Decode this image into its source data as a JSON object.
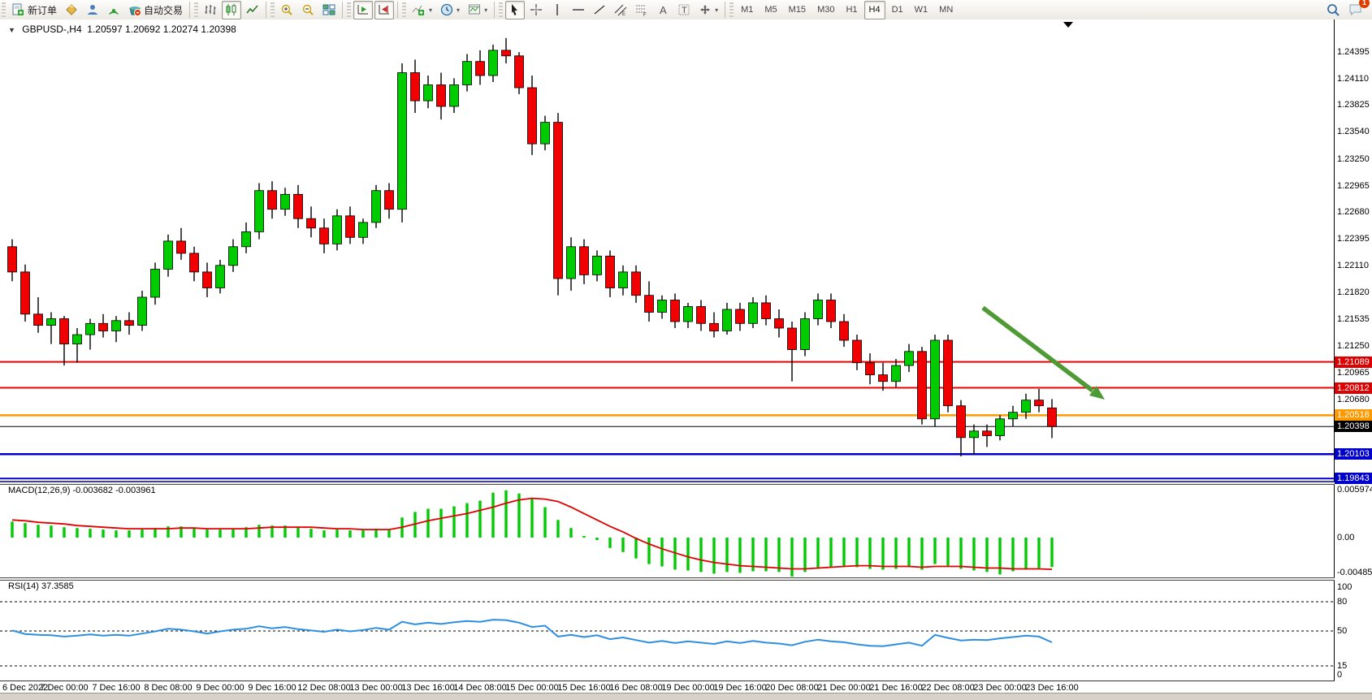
{
  "toolbar": {
    "new_order_label": "新订单",
    "autotrading_label": "自动交易",
    "notifications_count": "1",
    "groups": [
      {
        "name": "trade-group",
        "items": [
          {
            "name": "new-order-button",
            "icon": "doc-plus",
            "label": "新订单"
          },
          {
            "name": "crystal-button",
            "icon": "diamond"
          },
          {
            "name": "community-button",
            "icon": "person"
          },
          {
            "name": "signals-button",
            "icon": "signal"
          },
          {
            "name": "autotrading-button",
            "icon": "autotrade",
            "label": "自动交易"
          }
        ]
      },
      {
        "name": "chart-type-group",
        "items": [
          {
            "name": "bar-chart-button",
            "icon": "bars"
          },
          {
            "name": "candlestick-chart-button",
            "icon": "candles",
            "active": true
          },
          {
            "name": "line-chart-button",
            "icon": "linechart"
          }
        ]
      },
      {
        "name": "zoom-group",
        "items": [
          {
            "name": "zoom-in-button",
            "icon": "zoomin"
          },
          {
            "name": "zoom-out-button",
            "icon": "zoomout"
          },
          {
            "name": "tile-windows-button",
            "icon": "tile"
          }
        ]
      },
      {
        "name": "scroll-group",
        "items": [
          {
            "name": "auto-scroll-button",
            "icon": "autoscroll",
            "active": true
          },
          {
            "name": "chart-shift-button",
            "icon": "shift",
            "active": true
          }
        ]
      },
      {
        "name": "insert-group",
        "items": [
          {
            "name": "indicators-button",
            "icon": "indplus",
            "dropdown": true
          },
          {
            "name": "periods-button",
            "icon": "clock",
            "dropdown": true
          },
          {
            "name": "templates-button",
            "icon": "template",
            "dropdown": true
          }
        ]
      },
      {
        "name": "drawing-group",
        "items": [
          {
            "name": "cursor-button",
            "icon": "cursor",
            "active": true
          },
          {
            "name": "crosshair-button",
            "icon": "crosshair"
          },
          {
            "name": "vertical-line-button",
            "icon": "vline"
          },
          {
            "name": "horizontal-line-button",
            "icon": "hline"
          },
          {
            "name": "trendline-button",
            "icon": "trend"
          },
          {
            "name": "equidistant-channel-button",
            "icon": "channel"
          },
          {
            "name": "fibonacci-button",
            "icon": "fibo"
          },
          {
            "name": "text-button",
            "icon": "textA"
          },
          {
            "name": "text-label-button",
            "icon": "textT"
          },
          {
            "name": "arrows-button",
            "icon": "arrows",
            "dropdown": true
          }
        ]
      }
    ],
    "timeframes": [
      "M1",
      "M5",
      "M15",
      "M30",
      "H1",
      "H4",
      "D1",
      "W1",
      "MN"
    ],
    "active_timeframe": "H4"
  },
  "chart": {
    "title_symbol": "GBPUSD-,H4",
    "title_ohlc": "1.20597 1.20692 1.20274 1.20398"
  },
  "price_axis": {
    "ticks": [
      "1.24395",
      "1.24110",
      "1.23825",
      "1.23540",
      "1.23250",
      "1.22965",
      "1.22680",
      "1.22395",
      "1.22110",
      "1.21820",
      "1.21535",
      "1.21250",
      "1.20965",
      "1.20680"
    ],
    "badges": [
      {
        "value": "1.21089",
        "color": "#dd0000"
      },
      {
        "value": "1.20812",
        "color": "#dd0000"
      },
      {
        "value": "1.20518",
        "color": "#ff9900"
      },
      {
        "value": "1.20398",
        "color": "#000000"
      },
      {
        "value": "1.20103",
        "color": "#0000cc"
      },
      {
        "value": "1.19843",
        "color": "#0000cc"
      }
    ]
  },
  "overlay": {
    "hlines": [
      {
        "price": 1.21089,
        "color": "#ee0000",
        "width": 2
      },
      {
        "price": 1.20812,
        "color": "#ee0000",
        "width": 2
      },
      {
        "price": 1.20518,
        "color": "#ff9900",
        "width": 2.5
      },
      {
        "price": 1.20398,
        "color": "#000000",
        "width": 1
      },
      {
        "price": 1.20103,
        "color": "#0000cc",
        "width": 2.5
      },
      {
        "price": 1.19843,
        "color": "#0000cc",
        "width": 2
      }
    ],
    "arrow_color": "#4e9b35"
  },
  "chart_data": {
    "type": "candlestick",
    "symbol": "GBPUSD-",
    "timeframe": "H4",
    "current_ohlc": {
      "open": 1.20597,
      "high": 1.20692,
      "low": 1.20274,
      "close": 1.20398
    },
    "time_labels": [
      "6 Dec 2022",
      "7 Dec 00:00",
      "7 Dec 16:00",
      "8 Dec 08:00",
      "9 Dec 00:00",
      "9 Dec 16:00",
      "12 Dec 08:00",
      "13 Dec 00:00",
      "13 Dec 16:00",
      "14 Dec 08:00",
      "15 Dec 00:00",
      "15 Dec 16:00",
      "16 Dec 08:00",
      "19 Dec 00:00",
      "19 Dec 16:00",
      "20 Dec 08:00",
      "21 Dec 00:00",
      "21 Dec 16:00",
      "22 Dec 08:00",
      "23 Dec 00:00",
      "23 Dec 16:00"
    ],
    "candles": [
      [
        1.2232,
        1.224,
        1.2195,
        1.2205
      ],
      [
        1.2205,
        1.2213,
        1.2152,
        1.216
      ],
      [
        1.216,
        1.2178,
        1.214,
        1.2148
      ],
      [
        1.2148,
        1.2162,
        1.2128,
        1.2155
      ],
      [
        1.2155,
        1.2158,
        1.2105,
        1.2128
      ],
      [
        1.2128,
        1.2145,
        1.2108,
        1.2138
      ],
      [
        1.2138,
        1.2155,
        1.2122,
        1.215
      ],
      [
        1.215,
        1.216,
        1.2135,
        1.2142
      ],
      [
        1.2142,
        1.2158,
        1.213,
        1.2153
      ],
      [
        1.2153,
        1.2162,
        1.2138,
        1.2148
      ],
      [
        1.2148,
        1.2185,
        1.2142,
        1.2178
      ],
      [
        1.2178,
        1.2215,
        1.217,
        1.2208
      ],
      [
        1.2208,
        1.2245,
        1.22,
        1.2238
      ],
      [
        1.2238,
        1.2252,
        1.2218,
        1.2225
      ],
      [
        1.2225,
        1.2232,
        1.2195,
        1.2205
      ],
      [
        1.2205,
        1.2215,
        1.2178,
        1.2188
      ],
      [
        1.2188,
        1.2218,
        1.2182,
        1.2212
      ],
      [
        1.2212,
        1.224,
        1.2205,
        1.2232
      ],
      [
        1.2232,
        1.2258,
        1.2225,
        1.2248
      ],
      [
        1.2248,
        1.23,
        1.224,
        1.2292
      ],
      [
        1.2292,
        1.2302,
        1.2262,
        1.2272
      ],
      [
        1.2272,
        1.2295,
        1.2265,
        1.2288
      ],
      [
        1.2288,
        1.2298,
        1.2252,
        1.2262
      ],
      [
        1.2262,
        1.2275,
        1.2242,
        1.2252
      ],
      [
        1.2252,
        1.2262,
        1.2225,
        1.2235
      ],
      [
        1.2235,
        1.2272,
        1.2228,
        1.2265
      ],
      [
        1.2265,
        1.2275,
        1.2235,
        1.2242
      ],
      [
        1.2242,
        1.2262,
        1.2235,
        1.2258
      ],
      [
        1.2258,
        1.2298,
        1.2252,
        1.2292
      ],
      [
        1.2292,
        1.23,
        1.2262,
        1.2272
      ],
      [
        1.2272,
        1.2428,
        1.2258,
        1.2418
      ],
      [
        1.2418,
        1.2432,
        1.2375,
        1.2388
      ],
      [
        1.2388,
        1.2415,
        1.238,
        1.2405
      ],
      [
        1.2405,
        1.2418,
        1.2368,
        1.2382
      ],
      [
        1.2382,
        1.2412,
        1.2375,
        1.2405
      ],
      [
        1.2405,
        1.2438,
        1.2398,
        1.243
      ],
      [
        1.243,
        1.2442,
        1.2405,
        1.2415
      ],
      [
        1.2415,
        1.2448,
        1.2408,
        1.2442
      ],
      [
        1.2442,
        1.2455,
        1.2428,
        1.2436
      ],
      [
        1.2436,
        1.244,
        1.2395,
        1.2402
      ],
      [
        1.2402,
        1.2415,
        1.233,
        1.2342
      ],
      [
        1.2342,
        1.2372,
        1.2335,
        1.2365
      ],
      [
        1.2365,
        1.2375,
        1.218,
        1.2198
      ],
      [
        1.2198,
        1.2242,
        1.2185,
        1.2232
      ],
      [
        1.2232,
        1.224,
        1.2192,
        1.2202
      ],
      [
        1.2202,
        1.2228,
        1.2195,
        1.2222
      ],
      [
        1.2222,
        1.2228,
        1.2178,
        1.2188
      ],
      [
        1.2188,
        1.2212,
        1.218,
        1.2205
      ],
      [
        1.2205,
        1.2212,
        1.2172,
        1.218
      ],
      [
        1.218,
        1.2195,
        1.2152,
        1.2162
      ],
      [
        1.2162,
        1.218,
        1.2155,
        1.2175
      ],
      [
        1.2175,
        1.2182,
        1.2145,
        1.2152
      ],
      [
        1.2152,
        1.2172,
        1.2145,
        1.2168
      ],
      [
        1.2168,
        1.2175,
        1.2142,
        1.215
      ],
      [
        1.215,
        1.2162,
        1.2135,
        1.2142
      ],
      [
        1.2142,
        1.2172,
        1.2138,
        1.2165
      ],
      [
        1.2165,
        1.2172,
        1.2142,
        1.215
      ],
      [
        1.215,
        1.2178,
        1.2145,
        1.2172
      ],
      [
        1.2172,
        1.218,
        1.2148,
        1.2155
      ],
      [
        1.2155,
        1.2165,
        1.2135,
        1.2145
      ],
      [
        1.2145,
        1.2152,
        1.2088,
        1.2122
      ],
      [
        1.2122,
        1.2162,
        1.2115,
        1.2155
      ],
      [
        1.2155,
        1.2182,
        1.2148,
        1.2175
      ],
      [
        1.2175,
        1.2182,
        1.2145,
        1.2152
      ],
      [
        1.2152,
        1.216,
        1.2125,
        1.2132
      ],
      [
        1.2132,
        1.2138,
        1.21,
        1.2108
      ],
      [
        1.2108,
        1.2118,
        1.2085,
        1.2095
      ],
      [
        1.2095,
        1.2108,
        1.2078,
        1.2088
      ],
      [
        1.2088,
        1.2112,
        1.2082,
        1.2105
      ],
      [
        1.2105,
        1.2128,
        1.2098,
        1.212
      ],
      [
        1.212,
        1.2125,
        1.2042,
        1.2048
      ],
      [
        1.2048,
        1.2138,
        1.204,
        1.2132
      ],
      [
        1.2132,
        1.2138,
        1.2055,
        1.2062
      ],
      [
        1.2062,
        1.2068,
        1.2008,
        1.2028
      ],
      [
        1.2028,
        1.2042,
        1.201,
        1.2035
      ],
      [
        1.2035,
        1.2042,
        1.2018,
        1.203
      ],
      [
        1.203,
        1.2052,
        1.2025,
        1.2048
      ],
      [
        1.2048,
        1.2062,
        1.204,
        1.2055
      ],
      [
        1.2055,
        1.2075,
        1.2048,
        1.2068
      ],
      [
        1.2068,
        1.208,
        1.2055,
        1.2062
      ],
      [
        1.20597,
        1.20692,
        1.20274,
        1.20398
      ]
    ],
    "bull_color": "#00cb00",
    "bear_color": "#f00000",
    "macd": {
      "label": "MACD(12,26,9) -0.003682 -0.003961",
      "axis_labels": [
        "0.005974",
        "0.00",
        "-0.00485"
      ],
      "current_macd": -0.003682,
      "current_signal": -0.003961,
      "histogram": [
        0.002,
        0.0018,
        0.0016,
        0.0015,
        0.0013,
        0.0012,
        0.0011,
        0.001,
        0.0009,
        0.0009,
        0.001,
        0.0012,
        0.0014,
        0.0014,
        0.0012,
        0.001,
        0.001,
        0.0011,
        0.0013,
        0.0016,
        0.0015,
        0.0015,
        0.0013,
        0.0011,
        0.0009,
        0.001,
        0.0009,
        0.0009,
        0.0011,
        0.001,
        0.0025,
        0.0032,
        0.0036,
        0.0036,
        0.0039,
        0.0043,
        0.0046,
        0.0056,
        0.0059,
        0.0055,
        0.0048,
        0.0038,
        0.0022,
        0.0012,
        0.0002,
        -0.0003,
        -0.0013,
        -0.0018,
        -0.0026,
        -0.0033,
        -0.0036,
        -0.004,
        -0.0041,
        -0.0043,
        -0.0045,
        -0.0043,
        -0.0044,
        -0.0042,
        -0.0042,
        -0.0043,
        -0.00485,
        -0.0043,
        -0.0039,
        -0.0037,
        -0.0036,
        -0.0037,
        -0.0039,
        -0.004,
        -0.0039,
        -0.0037,
        -0.004,
        -0.0033,
        -0.0035,
        -0.0039,
        -0.0041,
        -0.0043,
        -0.0046,
        -0.0042,
        -0.004,
        -0.0038,
        -0.003682
      ],
      "signal": [
        0.0022,
        0.0021,
        0.0019,
        0.0018,
        0.0017,
        0.0015,
        0.0014,
        0.0013,
        0.0012,
        0.0011,
        0.0011,
        0.0011,
        0.0011,
        0.0012,
        0.0012,
        0.0011,
        0.0011,
        0.0011,
        0.0011,
        0.0012,
        0.0013,
        0.0013,
        0.0013,
        0.0013,
        0.0012,
        0.0011,
        0.0011,
        0.001,
        0.001,
        0.001,
        0.0013,
        0.0017,
        0.0021,
        0.0024,
        0.0027,
        0.003,
        0.0034,
        0.0038,
        0.0043,
        0.0047,
        0.0049,
        0.0048,
        0.0045,
        0.0038,
        0.003,
        0.0022,
        0.0014,
        0.0007,
        -0.0001,
        -0.0008,
        -0.0014,
        -0.0019,
        -0.0024,
        -0.0028,
        -0.0031,
        -0.0033,
        -0.0035,
        -0.0036,
        -0.0037,
        -0.0038,
        -0.0039,
        -0.0039,
        -0.0038,
        -0.0037,
        -0.0036,
        -0.0035,
        -0.0035,
        -0.0036,
        -0.0036,
        -0.0036,
        -0.0037,
        -0.0036,
        -0.0036,
        -0.0036,
        -0.0037,
        -0.0038,
        -0.0038,
        -0.0039,
        -0.0039,
        -0.0039,
        -0.003961
      ],
      "histogram_color": "#00cb00",
      "signal_color": "#e00000"
    },
    "rsi": {
      "label": "RSI(14) 37.3585",
      "axis_labels": [
        "100",
        "80",
        "50",
        "15",
        "0"
      ],
      "levels": [
        80,
        50,
        15
      ],
      "current": 37.3585,
      "line_color": "#2e8fe0",
      "values": [
        51,
        47,
        46,
        45.5,
        44,
        45,
        46.5,
        45,
        46,
        45,
        47.5,
        50,
        53,
        52,
        50,
        47.5,
        50,
        52,
        53,
        56,
        53.5,
        55,
        52.5,
        51,
        49.5,
        52,
        50,
        51.5,
        54,
        52,
        61,
        58,
        60,
        58.5,
        60.5,
        62,
        61,
        63.5,
        63,
        60,
        55,
        56.5,
        44,
        46,
        43.5,
        45.5,
        41,
        43,
        40,
        37,
        39,
        36.5,
        38.5,
        37,
        35.5,
        38.5,
        36.5,
        39,
        37,
        36,
        34,
        38,
        40.5,
        38.5,
        37.5,
        35,
        33.5,
        33,
        35,
        37,
        33.5,
        46,
        42.5,
        39.5,
        40.5,
        40,
        42,
        43.5,
        45,
        44,
        37.36
      ]
    }
  }
}
